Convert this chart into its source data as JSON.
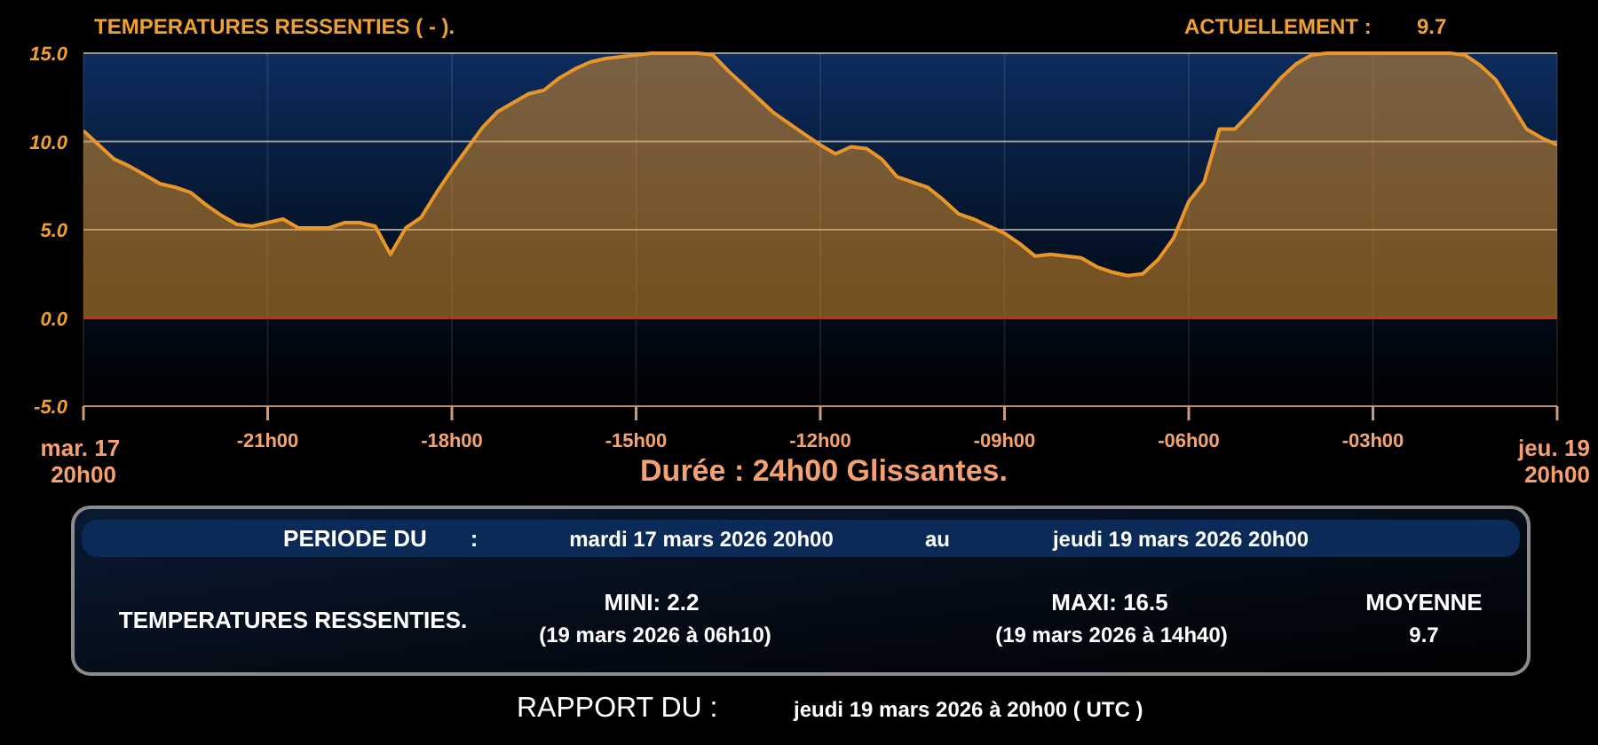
{
  "chart_data": {
    "type": "area",
    "title": "TEMPERATURES RESSENTIES ( - ).",
    "xlabel": "Durée : 24h00 Glissantes.",
    "categories": [
      "mar. 17 20h00",
      null,
      null,
      null,
      null,
      null,
      null,
      null,
      null,
      null,
      null,
      null,
      "-21h00",
      null,
      null,
      null,
      null,
      null,
      null,
      null,
      null,
      null,
      null,
      null,
      "-18h00",
      null,
      null,
      null,
      null,
      null,
      null,
      null,
      null,
      null,
      null,
      null,
      "-15h00",
      null,
      null,
      null,
      null,
      null,
      null,
      null,
      null,
      null,
      null,
      null,
      "-12h00",
      null,
      null,
      null,
      null,
      null,
      null,
      null,
      null,
      null,
      null,
      null,
      "-09h00",
      null,
      null,
      null,
      null,
      null,
      null,
      null,
      null,
      null,
      null,
      null,
      "-06h00",
      null,
      null,
      null,
      null,
      null,
      null,
      null,
      null,
      null,
      null,
      null,
      "-03h00",
      null,
      null,
      null,
      null,
      null,
      null,
      null,
      null,
      null,
      null,
      null,
      "jeu. 19 20h00"
    ],
    "values": [
      10.6,
      9.8,
      9.0,
      8.6,
      8.1,
      7.6,
      7.4,
      7.1,
      6.4,
      5.8,
      5.3,
      5.2,
      5.4,
      5.6,
      5.1,
      5.1,
      5.1,
      5.4,
      5.4,
      5.2,
      3.6,
      5.1,
      5.7,
      7.1,
      8.4,
      9.6,
      10.8,
      11.7,
      12.2,
      12.7,
      12.9,
      13.6,
      14.1,
      14.5,
      14.7,
      14.8,
      14.9,
      15,
      15,
      15,
      15,
      14.9,
      14.0,
      13.2,
      12.4,
      11.6,
      11.0,
      10.4,
      9.8,
      9.3,
      9.7,
      9.6,
      9.0,
      8.0,
      7.7,
      7.4,
      6.7,
      5.9,
      5.6,
      5.2,
      4.8,
      4.2,
      3.5,
      3.6,
      3.5,
      3.4,
      2.9,
      2.6,
      2.4,
      2.5,
      3.3,
      4.5,
      6.6,
      7.7,
      10.7,
      10.7,
      11.6,
      12.6,
      13.6,
      14.4,
      14.9,
      15,
      15,
      15,
      15,
      15,
      15,
      15,
      15,
      15,
      14.9,
      14.3,
      13.5,
      12.1,
      10.7,
      10.2,
      9.8
    ],
    "color": "#e8962a",
    "ylim": [
      -5,
      15
    ],
    "yticks": [
      {
        "value": -5,
        "label": "-5.0"
      },
      {
        "value": 0,
        "label": "0.0"
      },
      {
        "value": 5,
        "label": "5.0"
      },
      {
        "value": 10,
        "label": "10.0"
      },
      {
        "value": 15,
        "label": "15.0"
      }
    ],
    "grid": true,
    "ref_lines": [
      {
        "axis": "y",
        "value": 0,
        "color": "#d42a10"
      }
    ],
    "annotations": [
      "ACTUELLEMENT :",
      "9.7",
      "PERIODE DU",
      ":",
      "mardi 17 mars 2026 20h00",
      "au",
      "jeudi 19 mars 2026 20h00",
      "TEMPERATURES RESSENTIES.",
      "MINI: 2.2",
      "(19 mars 2026 à 06h10)",
      "MAXI: 16.5",
      "(19 mars 2026 à 14h40)",
      "MOYENNE",
      "9.7",
      "RAPPORT DU :",
      "jeudi 19 mars 2026 à 20h00 ( UTC )"
    ]
  }
}
